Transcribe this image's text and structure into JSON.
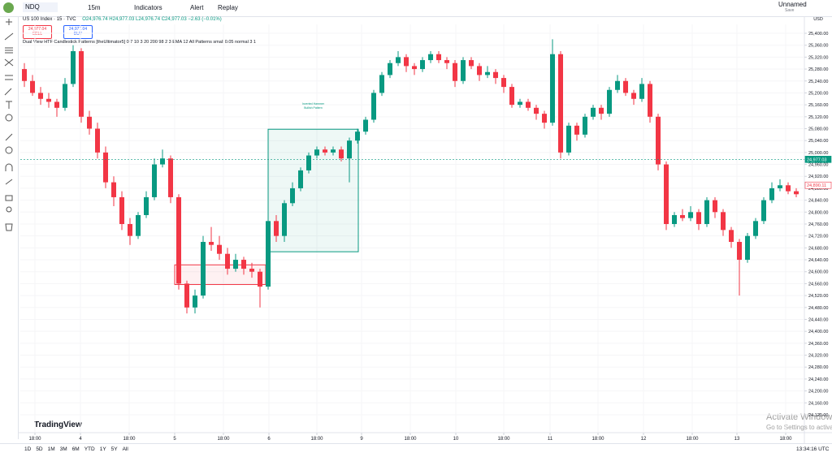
{
  "toolbar": {
    "symbol": "NDQ",
    "interval": "15m",
    "indicators": "Indicators",
    "alert": "Alert",
    "replay": "Replay",
    "layout": "Unnamed",
    "save": "Save"
  },
  "legend": {
    "title": "US 100 Index · 15 · TVC",
    "open": "O24,976.74",
    "high": "H24,977.03",
    "low": "L24,976.74",
    "close": "C24,977.03",
    "change": "−2.63 (−0.01%)",
    "sell_price": "24,977.04",
    "sell": "SELL",
    "buy_price": "24,977.04",
    "buy": "BUY",
    "indicator": "Dual View HTF Candlestick Patterns [theUltimator5] 0 7 10 3 20 200 98 2 3 EMA 12 All Patterns small 0.05 normal 3 1"
  },
  "chart_data": {
    "type": "candlestick",
    "currency": "USD",
    "up_color": "#089981",
    "down_color": "#f23645",
    "grid": true,
    "candles": [
      [
        25280,
        25300,
        25220,
        25240
      ],
      [
        25240,
        25260,
        25190,
        25200
      ],
      [
        25200,
        25220,
        25160,
        25180
      ],
      [
        25180,
        25200,
        25150,
        25170
      ],
      [
        25170,
        25180,
        25120,
        25150
      ],
      [
        25150,
        25250,
        25140,
        25230
      ],
      [
        25230,
        25360,
        25220,
        25340
      ],
      [
        25340,
        25350,
        25100,
        25120
      ],
      [
        25120,
        25140,
        25060,
        25080
      ],
      [
        25080,
        25100,
        24980,
        25000
      ],
      [
        25000,
        25020,
        24880,
        24900
      ],
      [
        24900,
        24920,
        24820,
        24850
      ],
      [
        24850,
        24870,
        24740,
        24760
      ],
      [
        24760,
        24780,
        24690,
        24720
      ],
      [
        24720,
        24800,
        24710,
        24790
      ],
      [
        24790,
        24870,
        24780,
        24850
      ],
      [
        24850,
        24980,
        24840,
        24960
      ],
      [
        24960,
        25010,
        24950,
        24980
      ],
      [
        24980,
        24990,
        24830,
        24850
      ],
      [
        24850,
        24860,
        24540,
        24560
      ],
      [
        24560,
        24570,
        24460,
        24480
      ],
      [
        24480,
        24540,
        24460,
        24520
      ],
      [
        24520,
        24720,
        24510,
        24700
      ],
      [
        24700,
        24750,
        24670,
        24690
      ],
      [
        24690,
        24720,
        24640,
        24660
      ],
      [
        24660,
        24680,
        24590,
        24610
      ],
      [
        24610,
        24660,
        24600,
        24640
      ],
      [
        24640,
        24650,
        24590,
        24610
      ],
      [
        24610,
        24630,
        24580,
        24600
      ],
      [
        24600,
        24610,
        24480,
        24550
      ],
      [
        24550,
        24790,
        24540,
        24770
      ],
      [
        24770,
        24790,
        24700,
        24720
      ],
      [
        24720,
        24840,
        24700,
        24830
      ],
      [
        24830,
        24900,
        24820,
        24880
      ],
      [
        24880,
        24950,
        24870,
        24940
      ],
      [
        24940,
        25000,
        24930,
        24990
      ],
      [
        24990,
        25020,
        24980,
        25010
      ],
      [
        25010,
        25020,
        24990,
        25000
      ],
      [
        25000,
        25020,
        24990,
        25010
      ],
      [
        25010,
        25020,
        24970,
        24980
      ],
      [
        24980,
        25050,
        24900,
        25040
      ],
      [
        25040,
        25080,
        25030,
        25070
      ],
      [
        25070,
        25120,
        25060,
        25110
      ],
      [
        25110,
        25210,
        25100,
        25200
      ],
      [
        25200,
        25270,
        25190,
        25260
      ],
      [
        25260,
        25310,
        25250,
        25300
      ],
      [
        25300,
        25340,
        25290,
        25320
      ],
      [
        25320,
        25330,
        25270,
        25290
      ],
      [
        25290,
        25300,
        25260,
        25280
      ],
      [
        25280,
        25320,
        25270,
        25310
      ],
      [
        25310,
        25340,
        25300,
        25330
      ],
      [
        25330,
        25340,
        25300,
        25310
      ],
      [
        25310,
        25320,
        25280,
        25300
      ],
      [
        25300,
        25310,
        25220,
        25240
      ],
      [
        25240,
        25320,
        25230,
        25310
      ],
      [
        25310,
        25320,
        25280,
        25290
      ],
      [
        25290,
        25300,
        25240,
        25260
      ],
      [
        25260,
        25290,
        25250,
        25270
      ],
      [
        25270,
        25280,
        25230,
        25250
      ],
      [
        25250,
        25260,
        25200,
        25220
      ],
      [
        25220,
        25230,
        25150,
        25160
      ],
      [
        25160,
        25180,
        25150,
        25170
      ],
      [
        25170,
        25180,
        25140,
        25150
      ],
      [
        25150,
        25160,
        25110,
        25130
      ],
      [
        25130,
        25140,
        25080,
        25100
      ],
      [
        25100,
        25380,
        25090,
        25330
      ],
      [
        25330,
        25340,
        24980,
        25000
      ],
      [
        25000,
        25100,
        24990,
        25090
      ],
      [
        25090,
        25100,
        25040,
        25060
      ],
      [
        25060,
        25130,
        25050,
        25120
      ],
      [
        25120,
        25160,
        25110,
        25150
      ],
      [
        25150,
        25160,
        25110,
        25130
      ],
      [
        25130,
        25220,
        25120,
        25210
      ],
      [
        25210,
        25260,
        25200,
        25240
      ],
      [
        25240,
        25250,
        25190,
        25200
      ],
      [
        25200,
        25210,
        25160,
        25180
      ],
      [
        25180,
        25250,
        25170,
        25230
      ],
      [
        25230,
        25240,
        25100,
        25120
      ],
      [
        25120,
        25130,
        24940,
        24960
      ],
      [
        24960,
        24970,
        24740,
        24760
      ],
      [
        24760,
        24800,
        24750,
        24790
      ],
      [
        24790,
        24810,
        24770,
        24780
      ],
      [
        24780,
        24820,
        24770,
        24800
      ],
      [
        24800,
        24810,
        24740,
        24760
      ],
      [
        24760,
        24850,
        24750,
        24840
      ],
      [
        24840,
        24850,
        24780,
        24800
      ],
      [
        24800,
        24810,
        24720,
        24740
      ],
      [
        24740,
        24750,
        24680,
        24700
      ],
      [
        24700,
        24710,
        24520,
        24640
      ],
      [
        24640,
        24730,
        24630,
        24720
      ],
      [
        24720,
        24780,
        24710,
        24770
      ],
      [
        24770,
        24850,
        24760,
        24840
      ],
      [
        24840,
        24900,
        24830,
        24880
      ],
      [
        24880,
        24910,
        24870,
        24890
      ],
      [
        24890,
        24900,
        24860,
        24870
      ],
      [
        24870,
        24880,
        24850,
        24860
      ]
    ],
    "xlim": [
      -0.5,
      96
    ],
    "xticks": [
      {
        "value": 1.3,
        "label": "18:00"
      },
      {
        "value": 6.9,
        "label": "4"
      },
      {
        "value": 12.9,
        "label": "18:00"
      },
      {
        "value": 18.5,
        "label": "5"
      },
      {
        "value": 24.5,
        "label": "18:00"
      },
      {
        "value": 30.1,
        "label": "6"
      },
      {
        "value": 36,
        "label": "18:00"
      },
      {
        "value": 41.5,
        "label": "9"
      },
      {
        "value": 47.5,
        "label": "18:00"
      },
      {
        "value": 53.1,
        "label": "10"
      },
      {
        "value": 59,
        "label": "18:00"
      },
      {
        "value": 64.7,
        "label": "11"
      },
      {
        "value": 70.6,
        "label": "18:00"
      },
      {
        "value": 76.2,
        "label": "12"
      },
      {
        "value": 82.2,
        "label": "18:00"
      },
      {
        "value": 87.7,
        "label": "13"
      },
      {
        "value": 93.7,
        "label": "18:00"
      }
    ],
    "ylim": [
      24060,
      25430
    ],
    "yticks": [
      {
        "value": 25400,
        "label": "25,400.00"
      },
      {
        "value": 25360,
        "label": "25,360.00"
      },
      {
        "value": 25320,
        "label": "25,320.00"
      },
      {
        "value": 25280,
        "label": "25,280.00"
      },
      {
        "value": 25240,
        "label": "25,240.00"
      },
      {
        "value": 25200,
        "label": "25,200.00"
      },
      {
        "value": 25160,
        "label": "25,160.00"
      },
      {
        "value": 25120,
        "label": "25,120.00"
      },
      {
        "value": 25080,
        "label": "25,080.00"
      },
      {
        "value": 25040,
        "label": "25,040.00"
      },
      {
        "value": 25000,
        "label": "25,000.00"
      },
      {
        "value": 24960,
        "label": "24,960.00"
      },
      {
        "value": 24920,
        "label": "24,920.00"
      },
      {
        "value": 24880,
        "label": "24,880.00"
      },
      {
        "value": 24840,
        "label": "24,840.00"
      },
      {
        "value": 24800,
        "label": "24,800.00"
      },
      {
        "value": 24760,
        "label": "24,760.00"
      },
      {
        "value": 24720,
        "label": "24,720.00"
      },
      {
        "value": 24680,
        "label": "24,680.00"
      },
      {
        "value": 24640,
        "label": "24,640.00"
      },
      {
        "value": 24600,
        "label": "24,600.00"
      },
      {
        "value": 24560,
        "label": "24,560.00"
      },
      {
        "value": 24520,
        "label": "24,520.00"
      },
      {
        "value": 24480,
        "label": "24,480.00"
      },
      {
        "value": 24440,
        "label": "24,440.00"
      },
      {
        "value": 24400,
        "label": "24,400.00"
      },
      {
        "value": 24360,
        "label": "24,360.00"
      },
      {
        "value": 24320,
        "label": "24,320.00"
      },
      {
        "value": 24280,
        "label": "24,280.00"
      },
      {
        "value": 24240,
        "label": "24,240.00"
      },
      {
        "value": 24200,
        "label": "24,200.00"
      },
      {
        "value": 24160,
        "label": "24,160.00"
      },
      {
        "value": 24120,
        "label": "24,120.00"
      }
    ],
    "price_lines": [
      {
        "value": 24977.03,
        "label": "24,977.03",
        "color": "#089981"
      },
      {
        "value": 24890.11,
        "label": "24,890.11",
        "color": "#f23645"
      }
    ],
    "boxes": [
      {
        "x": [
          18.5,
          29.7
        ],
        "y": [
          24557,
          24623
        ],
        "color": "#f23645"
      },
      {
        "x": [
          30,
          41.1
        ],
        "y": [
          24667,
          25078
        ],
        "color": "#089981",
        "text": [
          "Inverted Hammer",
          "Bullish Pattern"
        ]
      }
    ]
  },
  "bottom_bar": {
    "ranges": [
      "1D",
      "5D",
      "1M",
      "3M",
      "6M",
      "YTD",
      "1Y",
      "5Y",
      "All"
    ],
    "time": "13:34:16 UTC"
  },
  "branding": "TradingView",
  "watermark": {
    "title": "Activate Windows",
    "subtitle": "Go to Settings to activate Windows."
  }
}
